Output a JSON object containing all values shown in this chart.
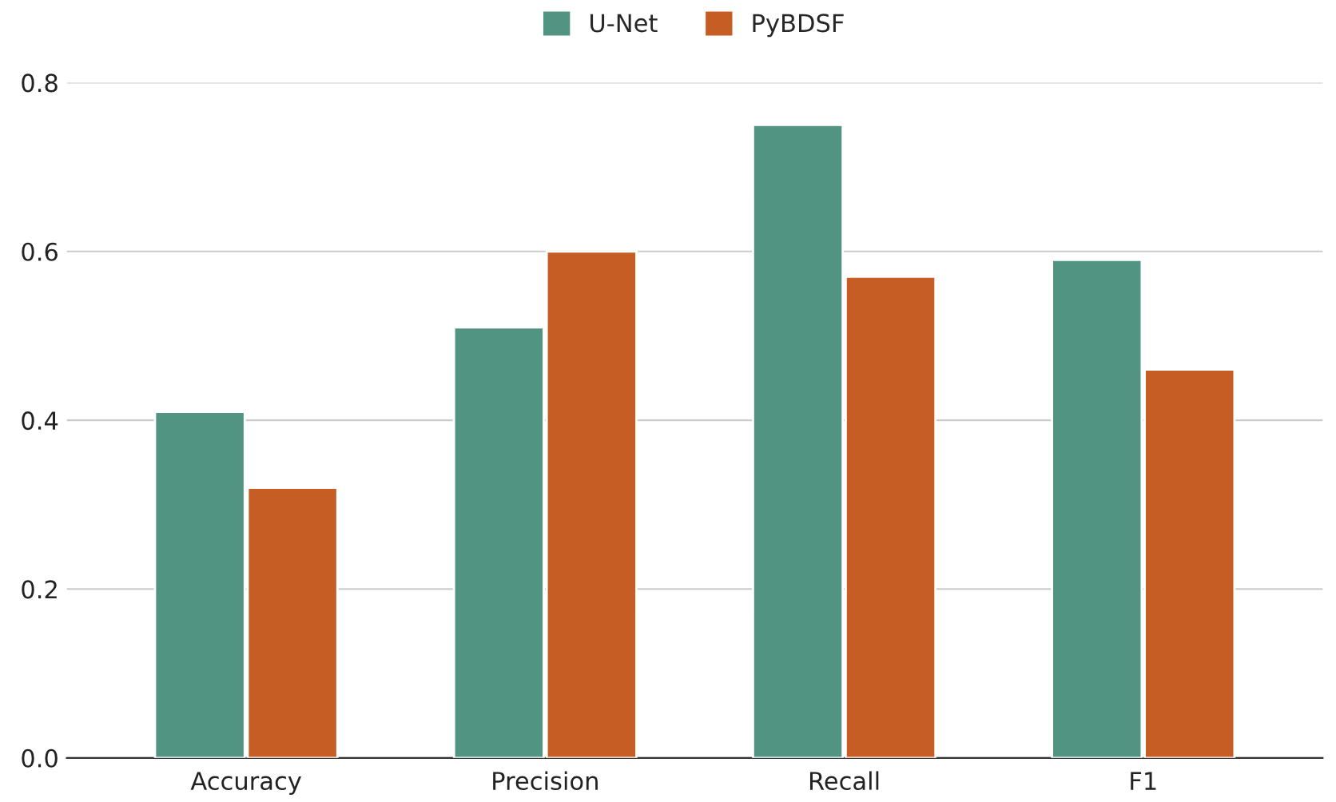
{
  "chart_data": {
    "type": "bar",
    "categories": [
      "Accuracy",
      "Precision",
      "Recall",
      "F1"
    ],
    "series": [
      {
        "name": "U-Net",
        "color": "#529482",
        "values": [
          0.41,
          0.51,
          0.75,
          0.59
        ]
      },
      {
        "name": "PyBDSF",
        "color": "#c55d24",
        "values": [
          0.32,
          0.6,
          0.57,
          0.46
        ]
      }
    ],
    "ylim": [
      0,
      0.8
    ],
    "yticks": [
      {
        "value": 0,
        "label": "0.0"
      },
      {
        "value": 0.2,
        "label": "0.2"
      },
      {
        "value": 0.4,
        "label": "0.4"
      },
      {
        "value": 0.6,
        "label": "0.6"
      },
      {
        "value": 0.8,
        "label": "0.8"
      }
    ],
    "grid": "y",
    "legend": "top"
  }
}
